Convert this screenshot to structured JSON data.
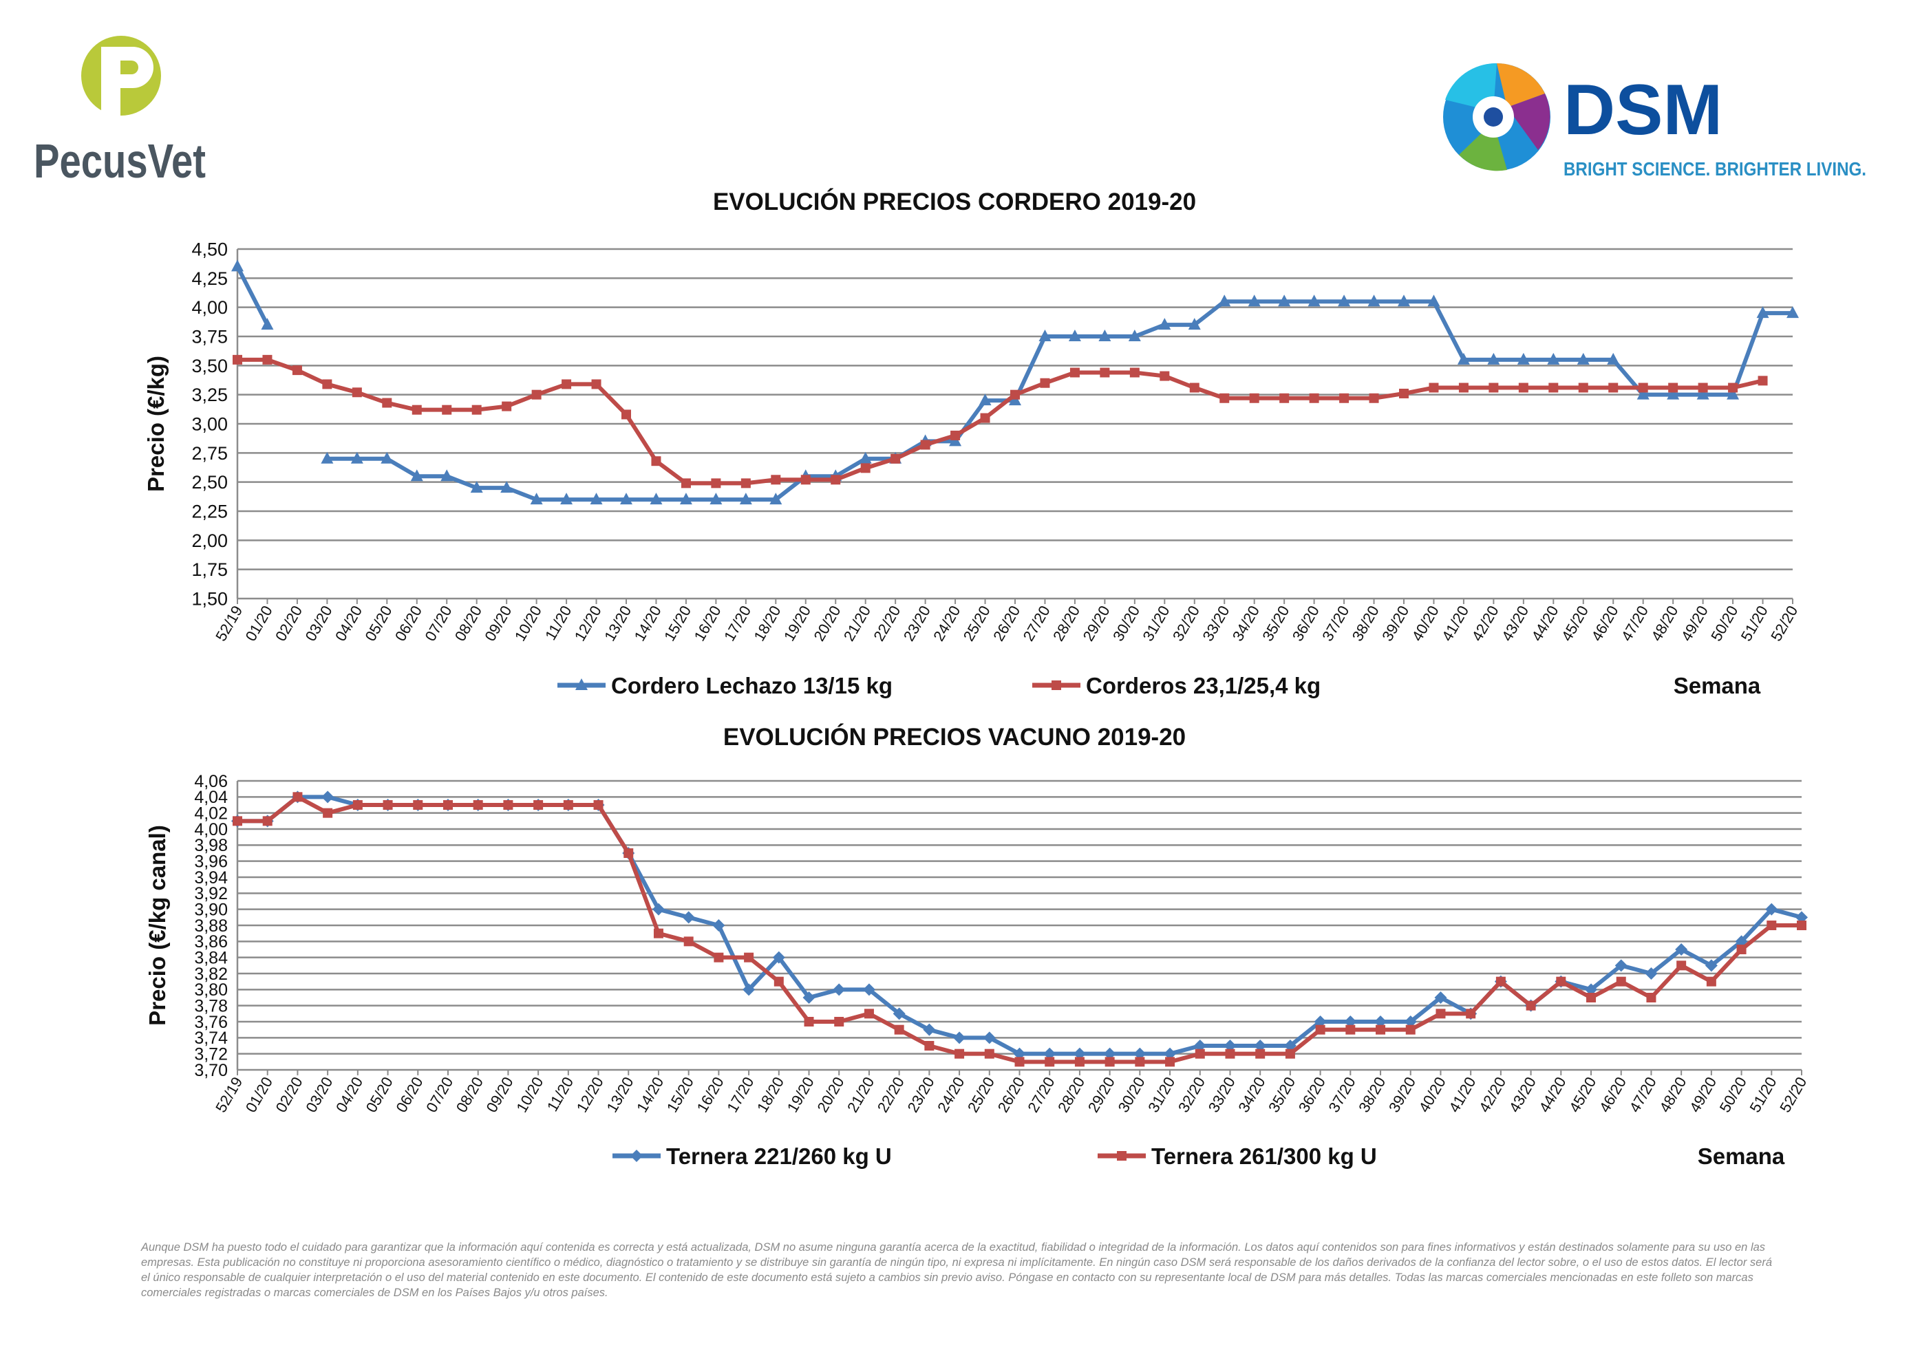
{
  "brand": {
    "left_logo_text": "PecusVet",
    "right_logo_text": "DSM",
    "right_logo_tagline": "BRIGHT SCIENCE. BRIGHTER LIVING.",
    "pecus_green": "#b9c93a",
    "pecus_gray": "#4a5660",
    "dsm_blue": "#0d4f9e",
    "dsm_tagline_color": "#2a8fc4"
  },
  "disclaimer": "Aunque DSM ha puesto todo el cuidado para garantizar que la información aquí contenida es correcta y está actualizada, DSM no asume ninguna garantía acerca de la exactitud, fiabilidad o integridad de la información. Los datos aquí contenidos son para fines informativos y están destinados solamente para su uso en las empresas. Esta publicación no constituye ni proporciona asesoramiento científico o médico, diagnóstico o tratamiento y se distribuye sin garantía de ningún tipo, ni expresa ni implícitamente. En ningún caso DSM será responsable de los daños derivados de la confianza del lector sobre, o el uso de estos datos. El lector será el único responsable de cualquier interpretación o el uso del material contenido en este documento. El contenido de este documento está sujeto a cambios sin previo aviso. Póngase en contacto con su representante local de DSM para más detalles. Todas las marcas comerciales mencionadas en este folleto son marcas comerciales registradas o marcas comerciales de DSM en los Países Bajos y/u otros países.",
  "chart_data": [
    {
      "type": "line",
      "title": "EVOLUCIÓN PRECIOS CORDERO 2019-20",
      "xlabel": "Semana",
      "ylabel": "Precio (€/kg)",
      "ylim": [
        1.5,
        4.5
      ],
      "yticks": [
        "1,50",
        "1,75",
        "2,00",
        "2,25",
        "2,50",
        "2,75",
        "3,00",
        "3,25",
        "3,50",
        "3,75",
        "4,00",
        "4,25",
        "4,50"
      ],
      "grid": true,
      "legend": "bottom",
      "categories": [
        "52/19",
        "01/20",
        "02/20",
        "03/20",
        "04/20",
        "05/20",
        "06/20",
        "07/20",
        "08/20",
        "09/20",
        "10/20",
        "11/20",
        "12/20",
        "13/20",
        "14/20",
        "15/20",
        "16/20",
        "17/20",
        "18/20",
        "19/20",
        "20/20",
        "21/20",
        "22/20",
        "23/20",
        "24/20",
        "25/20",
        "26/20",
        "27/20",
        "28/20",
        "29/20",
        "30/20",
        "31/20",
        "32/20",
        "33/20",
        "34/20",
        "35/20",
        "36/20",
        "37/20",
        "38/20",
        "39/20",
        "40/20",
        "41/20",
        "42/20",
        "43/20",
        "44/20",
        "45/20",
        "46/20",
        "47/20",
        "48/20",
        "49/20",
        "50/20",
        "51/20",
        "52/20"
      ],
      "series": [
        {
          "name": "Cordero Lechazo 13/15 kg",
          "color": "#4a7ebb",
          "marker": "triangle",
          "values": [
            4.35,
            3.85,
            null,
            2.7,
            2.7,
            2.7,
            2.55,
            2.55,
            2.45,
            2.45,
            2.35,
            2.35,
            2.35,
            2.35,
            2.35,
            2.35,
            2.35,
            2.35,
            2.35,
            2.55,
            2.55,
            2.7,
            2.7,
            2.85,
            2.85,
            3.2,
            3.2,
            3.75,
            3.75,
            3.75,
            3.75,
            3.85,
            3.85,
            4.05,
            4.05,
            4.05,
            4.05,
            4.05,
            4.05,
            4.05,
            4.05,
            3.55,
            3.55,
            3.55,
            3.55,
            3.55,
            3.55,
            3.25,
            3.25,
            3.25,
            3.25,
            3.95,
            3.95
          ]
        },
        {
          "name": "Corderos 23,1/25,4 kg",
          "color": "#be4b48",
          "marker": "square",
          "values": [
            3.55,
            3.55,
            3.46,
            3.34,
            3.27,
            3.18,
            3.12,
            3.12,
            3.12,
            3.15,
            3.25,
            3.34,
            3.34,
            3.08,
            2.68,
            2.49,
            2.49,
            2.49,
            2.52,
            2.52,
            2.52,
            2.62,
            2.7,
            2.82,
            2.9,
            3.05,
            3.25,
            3.35,
            3.44,
            3.44,
            3.44,
            3.41,
            3.31,
            3.22,
            3.22,
            3.22,
            3.22,
            3.22,
            3.22,
            3.26,
            3.31,
            3.31,
            3.31,
            3.31,
            3.31,
            3.31,
            3.31,
            3.31,
            3.31,
            3.31,
            3.31,
            3.37,
            null
          ]
        }
      ]
    },
    {
      "type": "line",
      "title": "EVOLUCIÓN PRECIOS VACUNO 2019-20",
      "xlabel": "Semana",
      "ylabel": "Precio (€/kg canal)",
      "ylim": [
        3.7,
        4.06
      ],
      "yticks": [
        "3,70",
        "3,72",
        "3,74",
        "3,76",
        "3,78",
        "3,80",
        "3,82",
        "3,84",
        "3,86",
        "3,88",
        "3,90",
        "3,92",
        "3,94",
        "3,96",
        "3,98",
        "4,00",
        "4,02",
        "4,04",
        "4,06"
      ],
      "grid": true,
      "legend": "bottom",
      "categories": [
        "52/19",
        "01/20",
        "02/20",
        "03/20",
        "04/20",
        "05/20",
        "06/20",
        "07/20",
        "08/20",
        "09/20",
        "10/20",
        "11/20",
        "12/20",
        "13/20",
        "14/20",
        "15/20",
        "16/20",
        "17/20",
        "18/20",
        "19/20",
        "20/20",
        "21/20",
        "22/20",
        "23/20",
        "24/20",
        "25/20",
        "26/20",
        "27/20",
        "28/20",
        "29/20",
        "30/20",
        "31/20",
        "32/20",
        "33/20",
        "34/20",
        "35/20",
        "36/20",
        "37/20",
        "38/20",
        "39/20",
        "40/20",
        "41/20",
        "42/20",
        "43/20",
        "44/20",
        "45/20",
        "46/20",
        "47/20",
        "48/20",
        "49/20",
        "50/20",
        "51/20",
        "52/20"
      ],
      "series": [
        {
          "name": "Ternera 221/260 kg U",
          "color": "#4a7ebb",
          "marker": "diamond",
          "values": [
            4.01,
            4.01,
            4.04,
            4.04,
            4.03,
            4.03,
            4.03,
            4.03,
            4.03,
            4.03,
            4.03,
            4.03,
            4.03,
            3.97,
            3.9,
            3.89,
            3.88,
            3.8,
            3.84,
            3.79,
            3.8,
            3.8,
            3.77,
            3.75,
            3.74,
            3.74,
            3.72,
            3.72,
            3.72,
            3.72,
            3.72,
            3.72,
            3.73,
            3.73,
            3.73,
            3.73,
            3.76,
            3.76,
            3.76,
            3.76,
            3.79,
            3.77,
            3.81,
            3.78,
            3.81,
            3.8,
            3.83,
            3.82,
            3.85,
            3.83,
            3.86,
            3.9,
            3.89
          ]
        },
        {
          "name": "Ternera 261/300 kg U",
          "color": "#be4b48",
          "marker": "square",
          "values": [
            4.01,
            4.01,
            4.04,
            4.02,
            4.03,
            4.03,
            4.03,
            4.03,
            4.03,
            4.03,
            4.03,
            4.03,
            4.03,
            3.97,
            3.87,
            3.86,
            3.84,
            3.84,
            3.81,
            3.76,
            3.76,
            3.77,
            3.75,
            3.73,
            3.72,
            3.72,
            3.71,
            3.71,
            3.71,
            3.71,
            3.71,
            3.71,
            3.72,
            3.72,
            3.72,
            3.72,
            3.75,
            3.75,
            3.75,
            3.75,
            3.77,
            3.77,
            3.81,
            3.78,
            3.81,
            3.79,
            3.81,
            3.79,
            3.83,
            3.81,
            3.85,
            3.88,
            3.88
          ]
        }
      ]
    }
  ]
}
